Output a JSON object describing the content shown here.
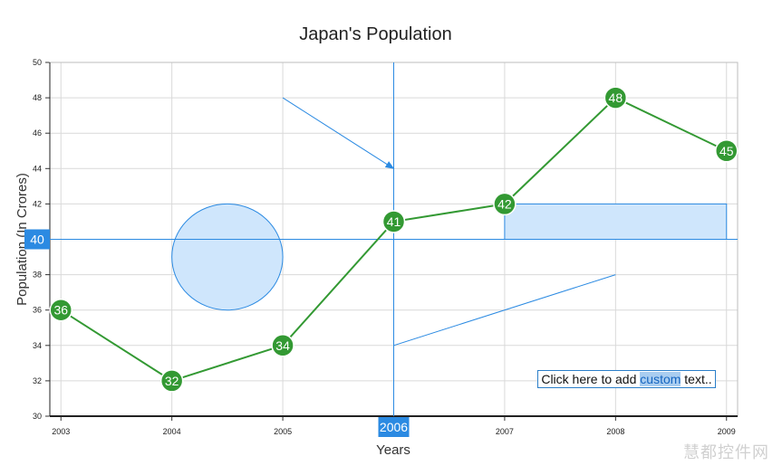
{
  "chart_data": {
    "type": "line",
    "title": "Japan's Population",
    "xlabel": "Years",
    "ylabel": "Population (In Crores)",
    "x": [
      2003,
      2004,
      2005,
      2006,
      2007,
      2008,
      2009
    ],
    "x_tick_labels": [
      "2003",
      "2004",
      "2005",
      "2006",
      "2007",
      "2008",
      "2009"
    ],
    "ylim": [
      30,
      50
    ],
    "y_ticks": [
      30,
      32,
      34,
      36,
      38,
      40,
      42,
      44,
      46,
      48,
      50
    ],
    "series": [
      {
        "values": [
          36,
          32,
          34,
          41,
          42,
          48,
          45
        ],
        "color": "#339933"
      }
    ],
    "grid": true,
    "crosshair": {
      "x": 2006,
      "y": 40,
      "x_label": "2006",
      "y_label": "40",
      "color": "#2b8ae2"
    },
    "annotations": {
      "ellipse": {
        "x1": 2004,
        "y1": 42,
        "x2": 2005,
        "y2": 36
      },
      "rectangle": {
        "x1": 2007,
        "y1": 42,
        "x2": 2009,
        "y2": 40
      },
      "arrow": {
        "x1": 2005,
        "y1": 48,
        "x2": 2006,
        "y2": 44
      },
      "line": {
        "x1": 2006,
        "y1": 34,
        "x2": 2008,
        "y2": 38
      },
      "text": {
        "x": 2008.0,
        "y": 33,
        "before": "Click here to add ",
        "highlight": "custom",
        "after": " text.."
      }
    },
    "colors": {
      "line": "#339933",
      "accent": "#2b8ae2",
      "fill": "#cfe6fc",
      "grid": "#d9d9d9"
    }
  },
  "watermark": "慧都控件网"
}
